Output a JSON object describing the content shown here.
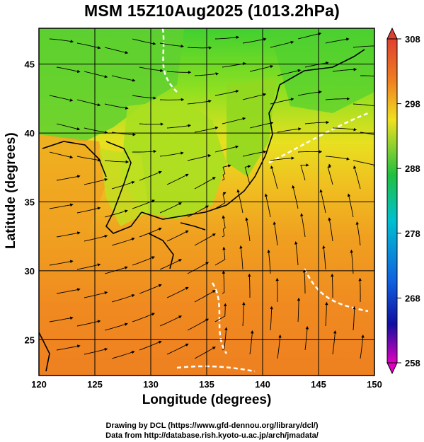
{
  "title": "MSM 15Z10Aug2025 (1013.2hPa)",
  "axes": {
    "xlabel": "Longitude (degrees)",
    "ylabel": "Latitude  (degrees)",
    "xlim": [
      120,
      150
    ],
    "ylim": [
      22.4,
      47.6
    ],
    "xticks": [
      120,
      125,
      130,
      135,
      140,
      145,
      150
    ],
    "yticks": [
      25,
      30,
      35,
      40,
      45
    ]
  },
  "colorbar": {
    "min": 258,
    "max": 308,
    "labels": [
      308,
      298,
      288,
      278,
      268,
      258
    ],
    "colors": [
      "#e00070",
      "#2030e0",
      "#00c0e0",
      "#20c040",
      "#f0e020",
      "#f08020",
      "#e04030"
    ]
  },
  "credits": {
    "line1": "Drawing by DCL (https://www.gfd-dennou.org/library/dcl/)",
    "line2": "Data from http://database.rish.kyoto-u.ac.jp/arch/jmadata/"
  }
}
